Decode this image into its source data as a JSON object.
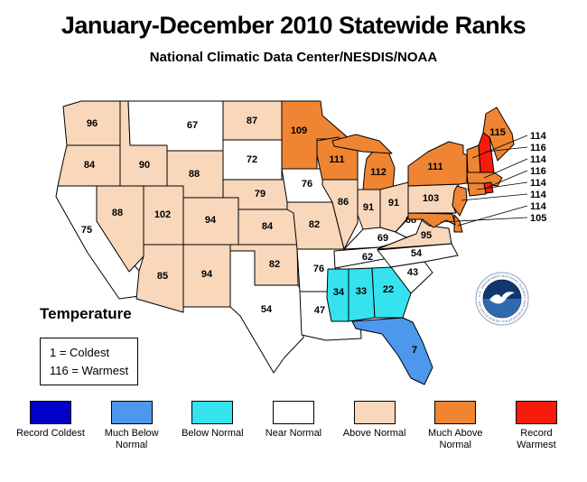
{
  "header": {
    "title": "January-December 2010 Statewide Ranks",
    "subtitle": "National Climatic Data Center/NESDIS/NOAA"
  },
  "temperature_key": {
    "heading": "Temperature",
    "lines": [
      "1 = Coldest",
      "116 = Warmest"
    ]
  },
  "legend": {
    "items": [
      {
        "label": "Record Coldest",
        "color": "#0000c8",
        "category": "record_coldest"
      },
      {
        "label": "Much Below Normal",
        "color": "#4d97ec",
        "category": "much_below_normal"
      },
      {
        "label": "Below Normal",
        "color": "#35e2ee",
        "category": "below_normal"
      },
      {
        "label": "Near Normal",
        "color": "#ffffff",
        "category": "near_normal"
      },
      {
        "label": "Above Normal",
        "color": "#f8d7bb",
        "category": "above_normal"
      },
      {
        "label": "Much Above Normal",
        "color": "#ef8532",
        "category": "much_above_normal"
      },
      {
        "label": "Record Warmest",
        "color": "#f81b0c",
        "category": "record_warmest"
      }
    ]
  },
  "logo": {
    "name": "NOAA",
    "ring_text": "NATIONAL OCEANIC AND ATMOSPHERIC ADMINISTRATION · U.S. DEPARTMENT OF COMMERCE"
  },
  "chart_data": {
    "type": "heatmap",
    "subtype": "us_statewide_choropleth",
    "title": "January-December 2010 Statewide Ranks",
    "subtitle": "National Climatic Data Center/NESDIS/NOAA",
    "legend_position": "bottom",
    "scale": {
      "min": 1,
      "max": 116,
      "min_label": "1 = Coldest",
      "max_label": "116 = Warmest"
    },
    "categories": [
      "Record Coldest",
      "Much Below Normal",
      "Below Normal",
      "Near Normal",
      "Above Normal",
      "Much Above Normal",
      "Record Warmest"
    ],
    "states": [
      {
        "abbr": "WA",
        "name": "Washington",
        "rank": 96,
        "category": "above_normal"
      },
      {
        "abbr": "OR",
        "name": "Oregon",
        "rank": 84,
        "category": "above_normal"
      },
      {
        "abbr": "CA",
        "name": "California",
        "rank": 75,
        "category": "near_normal"
      },
      {
        "abbr": "NV",
        "name": "Nevada",
        "rank": 88,
        "category": "above_normal"
      },
      {
        "abbr": "ID",
        "name": "Idaho",
        "rank": 90,
        "category": "above_normal"
      },
      {
        "abbr": "MT",
        "name": "Montana",
        "rank": 67,
        "category": "near_normal"
      },
      {
        "abbr": "WY",
        "name": "Wyoming",
        "rank": 88,
        "category": "above_normal"
      },
      {
        "abbr": "UT",
        "name": "Utah",
        "rank": 102,
        "category": "above_normal"
      },
      {
        "abbr": "CO",
        "name": "Colorado",
        "rank": 94,
        "category": "above_normal"
      },
      {
        "abbr": "AZ",
        "name": "Arizona",
        "rank": 85,
        "category": "above_normal"
      },
      {
        "abbr": "NM",
        "name": "New Mexico",
        "rank": 94,
        "category": "above_normal"
      },
      {
        "abbr": "ND",
        "name": "North Dakota",
        "rank": 87,
        "category": "above_normal"
      },
      {
        "abbr": "SD",
        "name": "South Dakota",
        "rank": 72,
        "category": "near_normal"
      },
      {
        "abbr": "NE",
        "name": "Nebraska",
        "rank": 79,
        "category": "above_normal"
      },
      {
        "abbr": "KS",
        "name": "Kansas",
        "rank": 84,
        "category": "above_normal"
      },
      {
        "abbr": "OK",
        "name": "Oklahoma",
        "rank": 82,
        "category": "above_normal"
      },
      {
        "abbr": "TX",
        "name": "Texas",
        "rank": 54,
        "category": "near_normal"
      },
      {
        "abbr": "MN",
        "name": "Minnesota",
        "rank": 109,
        "category": "much_above_normal"
      },
      {
        "abbr": "IA",
        "name": "Iowa",
        "rank": 76,
        "category": "near_normal"
      },
      {
        "abbr": "MO",
        "name": "Missouri",
        "rank": 82,
        "category": "above_normal"
      },
      {
        "abbr": "AR",
        "name": "Arkansas",
        "rank": 76,
        "category": "near_normal"
      },
      {
        "abbr": "LA",
        "name": "Louisiana",
        "rank": 47,
        "category": "near_normal"
      },
      {
        "abbr": "WI",
        "name": "Wisconsin",
        "rank": 111,
        "category": "much_above_normal"
      },
      {
        "abbr": "IL",
        "name": "Illinois",
        "rank": 86,
        "category": "above_normal"
      },
      {
        "abbr": "MS",
        "name": "Mississippi",
        "rank": 34,
        "category": "below_normal"
      },
      {
        "abbr": "MI",
        "name": "Michigan",
        "rank": 112,
        "category": "much_above_normal"
      },
      {
        "abbr": "IN",
        "name": "Indiana",
        "rank": 91,
        "category": "above_normal"
      },
      {
        "abbr": "OH",
        "name": "Ohio",
        "rank": 91,
        "category": "above_normal"
      },
      {
        "abbr": "KY",
        "name": "Kentucky",
        "rank": 69,
        "category": "near_normal"
      },
      {
        "abbr": "TN",
        "name": "Tennessee",
        "rank": 62,
        "category": "near_normal"
      },
      {
        "abbr": "AL",
        "name": "Alabama",
        "rank": 33,
        "category": "below_normal"
      },
      {
        "abbr": "WV",
        "name": "West Virginia",
        "rank": 68,
        "category": "near_normal"
      },
      {
        "abbr": "VA",
        "name": "Virginia",
        "rank": 95,
        "category": "above_normal"
      },
      {
        "abbr": "NC",
        "name": "North Carolina",
        "rank": 54,
        "category": "near_normal"
      },
      {
        "abbr": "SC",
        "name": "South Carolina",
        "rank": 43,
        "category": "near_normal"
      },
      {
        "abbr": "GA",
        "name": "Georgia",
        "rank": 22,
        "category": "below_normal"
      },
      {
        "abbr": "FL",
        "name": "Florida",
        "rank": 7,
        "category": "much_below_normal"
      },
      {
        "abbr": "PA",
        "name": "Pennsylvania",
        "rank": 103,
        "category": "above_normal"
      },
      {
        "abbr": "NY",
        "name": "New York",
        "rank": 111,
        "category": "much_above_normal"
      },
      {
        "abbr": "VT",
        "name": "Vermont",
        "rank": 114,
        "category": "much_above_normal"
      },
      {
        "abbr": "NH",
        "name": "New Hampshire",
        "rank": 116,
        "category": "record_warmest"
      },
      {
        "abbr": "ME",
        "name": "Maine",
        "rank": 115,
        "category": "much_above_normal"
      },
      {
        "abbr": "MA",
        "name": "Massachusetts",
        "rank": 114,
        "category": "much_above_normal"
      },
      {
        "abbr": "RI",
        "name": "Rhode Island",
        "rank": 116,
        "category": "record_warmest"
      },
      {
        "abbr": "CT",
        "name": "Connecticut",
        "rank": 114,
        "category": "much_above_normal"
      },
      {
        "abbr": "NJ",
        "name": "New Jersey",
        "rank": 114,
        "category": "much_above_normal"
      },
      {
        "abbr": "DE",
        "name": "Delaware",
        "rank": 114,
        "category": "much_above_normal"
      },
      {
        "abbr": "MD",
        "name": "Maryland",
        "rank": 105,
        "category": "much_above_normal"
      }
    ]
  }
}
